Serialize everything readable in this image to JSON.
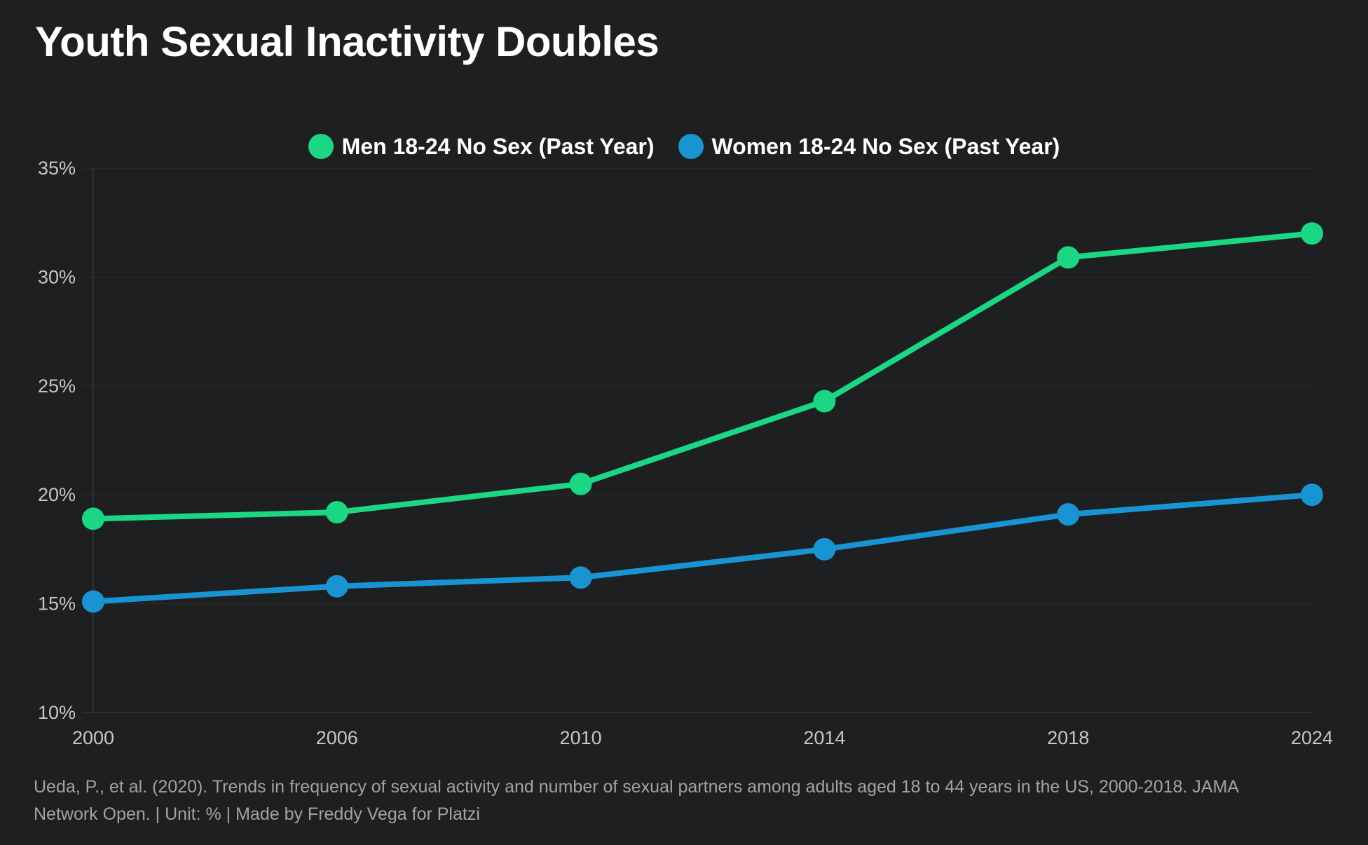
{
  "title": "Youth Sexual Inactivity Doubles",
  "footer": {
    "source": "Ueda, P., et al. (2020). Trends in frequency of sexual activity and number of sexual partners among adults aged 18 to 44 years in the US, 2000-2018. JAMA Network Open. | Unit: % | Made by Freddy Vega for Platzi"
  },
  "colors": {
    "background": "#1e1f20",
    "grid": "#2c2d2e",
    "axis": "#3e3f40",
    "tick_text": "#c6c6c6",
    "title_text": "#ffffff",
    "footer_text": "#a2a2a2",
    "men_series": "#1bd784",
    "women_series": "#1994d2"
  },
  "chart_data": {
    "type": "line",
    "categories": [
      "2000",
      "2006",
      "2010",
      "2014",
      "2018",
      "2024"
    ],
    "series": [
      {
        "name": "Men 18-24 No Sex (Past Year)",
        "color": "#1bd784",
        "values": [
          18.9,
          19.2,
          20.5,
          24.3,
          30.9,
          32.0
        ]
      },
      {
        "name": "Women 18-24 No Sex (Past Year)",
        "color": "#1994d2",
        "values": [
          15.1,
          15.8,
          16.2,
          17.5,
          19.1,
          20.0
        ]
      }
    ],
    "title": "Youth Sexual Inactivity Doubles",
    "xlabel": "",
    "ylabel": "",
    "unit": "%",
    "y_ticks": [
      10,
      15,
      20,
      25,
      30,
      35
    ],
    "y_tick_suffix": "%",
    "ylim": [
      10,
      35
    ],
    "grid": "horizontal",
    "legend_position": "top"
  }
}
